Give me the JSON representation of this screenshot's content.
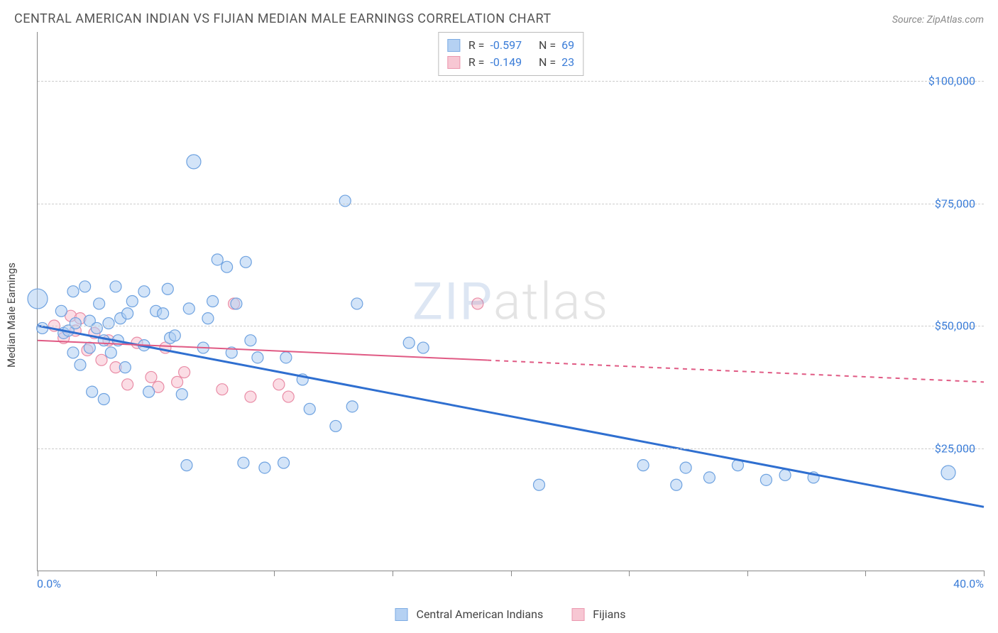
{
  "title": "CENTRAL AMERICAN INDIAN VS FIJIAN MEDIAN MALE EARNINGS CORRELATION CHART",
  "source": "Source: ZipAtlas.com",
  "watermark": {
    "part1": "ZIP",
    "part2": "atlas"
  },
  "chart": {
    "type": "scatter",
    "background_color": "#ffffff",
    "grid_color": "#cccccc",
    "axis_color": "#888888",
    "y_axis_title": "Median Male Earnings",
    "y_axis_title_fontsize": 15,
    "tick_label_color": "#3b7dd8",
    "tick_label_fontsize": 16,
    "xlim": [
      0,
      40
    ],
    "ylim": [
      0,
      110000
    ],
    "x_ticks": [
      0,
      5,
      10,
      15,
      20,
      25,
      30,
      35,
      40
    ],
    "x_tick_labels": {
      "0": "0.0%",
      "40": "40.0%"
    },
    "y_gridlines": [
      25000,
      50000,
      75000,
      100000
    ],
    "y_tick_labels": {
      "25000": "$25,000",
      "50000": "$50,000",
      "75000": "$75,000",
      "100000": "$100,000"
    },
    "series": [
      {
        "name": "Central American Indians",
        "fill": "#aecdf2",
        "stroke": "#6ea2e0",
        "fill_opacity": 0.55,
        "marker_radius": 8,
        "r_value": "-0.597",
        "n_value": "69",
        "trend": {
          "color": "#2f6fd0",
          "width": 3,
          "x1": 0,
          "y1": 50000,
          "x2": 40,
          "y2": 13000,
          "dashed_from_x": null
        },
        "points": [
          [
            0.0,
            55500,
            14
          ],
          [
            0.2,
            49500,
            8
          ],
          [
            1.0,
            53000,
            8
          ],
          [
            1.1,
            48500,
            8
          ],
          [
            1.3,
            49000,
            8
          ],
          [
            1.5,
            57000,
            8
          ],
          [
            1.5,
            44500,
            8
          ],
          [
            1.6,
            50500,
            8
          ],
          [
            1.8,
            42000,
            8
          ],
          [
            2.0,
            58000,
            8
          ],
          [
            2.2,
            51000,
            8
          ],
          [
            2.2,
            45500,
            8
          ],
          [
            2.3,
            36500,
            8
          ],
          [
            2.5,
            49500,
            8
          ],
          [
            2.6,
            54500,
            8
          ],
          [
            2.8,
            47000,
            8
          ],
          [
            2.8,
            35000,
            8
          ],
          [
            3.0,
            50500,
            8
          ],
          [
            3.1,
            44500,
            8
          ],
          [
            3.3,
            58000,
            8
          ],
          [
            3.4,
            47000,
            8
          ],
          [
            3.5,
            51500,
            8
          ],
          [
            3.7,
            41500,
            8
          ],
          [
            3.8,
            52500,
            8
          ],
          [
            4.0,
            55000,
            8
          ],
          [
            4.5,
            57000,
            8
          ],
          [
            4.5,
            46000,
            8
          ],
          [
            4.7,
            36500,
            8
          ],
          [
            5.0,
            53000,
            8
          ],
          [
            5.3,
            52500,
            8
          ],
          [
            5.5,
            57500,
            8
          ],
          [
            5.6,
            47500,
            8
          ],
          [
            5.8,
            48000,
            8
          ],
          [
            6.1,
            36000,
            8
          ],
          [
            6.3,
            21500,
            8
          ],
          [
            6.4,
            53500,
            8
          ],
          [
            6.6,
            83500,
            10
          ],
          [
            7.0,
            45500,
            8
          ],
          [
            7.2,
            51500,
            8
          ],
          [
            7.4,
            55000,
            8
          ],
          [
            7.6,
            63500,
            8
          ],
          [
            8.0,
            62000,
            8
          ],
          [
            8.2,
            44500,
            8
          ],
          [
            8.4,
            54500,
            8
          ],
          [
            8.7,
            22000,
            8
          ],
          [
            8.8,
            63000,
            8
          ],
          [
            9.0,
            47000,
            8
          ],
          [
            9.3,
            43500,
            8
          ],
          [
            9.6,
            21000,
            8
          ],
          [
            10.4,
            22000,
            8
          ],
          [
            10.5,
            43500,
            8
          ],
          [
            11.2,
            39000,
            8
          ],
          [
            11.5,
            33000,
            8
          ],
          [
            12.6,
            29500,
            8
          ],
          [
            13.0,
            75500,
            8
          ],
          [
            13.3,
            33500,
            8
          ],
          [
            13.5,
            54500,
            8
          ],
          [
            15.7,
            46500,
            8
          ],
          [
            16.3,
            45500,
            8
          ],
          [
            21.2,
            17500,
            8
          ],
          [
            25.6,
            21500,
            8
          ],
          [
            27.0,
            17500,
            8
          ],
          [
            27.4,
            21000,
            8
          ],
          [
            28.4,
            19000,
            8
          ],
          [
            29.6,
            21500,
            8
          ],
          [
            30.8,
            18500,
            8
          ],
          [
            31.6,
            19500,
            8
          ],
          [
            32.8,
            19000,
            8
          ],
          [
            38.5,
            20000,
            10
          ]
        ]
      },
      {
        "name": "Fijians",
        "fill": "#f7c1cf",
        "stroke": "#e98ca6",
        "fill_opacity": 0.55,
        "marker_radius": 8,
        "r_value": "-0.149",
        "n_value": "23",
        "trend": {
          "color": "#e05a84",
          "width": 2,
          "x1": 0,
          "y1": 47000,
          "x2": 40,
          "y2": 38500,
          "dashed_from_x": 19
        },
        "points": [
          [
            0.7,
            50000,
            8
          ],
          [
            1.1,
            47500,
            8
          ],
          [
            1.4,
            52000,
            8
          ],
          [
            1.6,
            49000,
            8
          ],
          [
            1.8,
            51500,
            8
          ],
          [
            2.1,
            45000,
            8
          ],
          [
            2.4,
            48500,
            8
          ],
          [
            2.7,
            43000,
            8
          ],
          [
            3.0,
            47000,
            8
          ],
          [
            3.3,
            41500,
            8
          ],
          [
            3.8,
            38000,
            8
          ],
          [
            4.2,
            46500,
            8
          ],
          [
            4.8,
            39500,
            8
          ],
          [
            5.1,
            37500,
            8
          ],
          [
            5.4,
            45500,
            8
          ],
          [
            5.9,
            38500,
            8
          ],
          [
            6.2,
            40500,
            8
          ],
          [
            7.8,
            37000,
            8
          ],
          [
            8.3,
            54500,
            8
          ],
          [
            9.0,
            35500,
            8
          ],
          [
            10.2,
            38000,
            8
          ],
          [
            10.6,
            35500,
            8
          ],
          [
            18.6,
            54500,
            8
          ]
        ]
      }
    ],
    "legend_top": {
      "border_color": "#bbbbbb",
      "r_label": "R =",
      "n_label": "N ="
    },
    "bottom_legend_swatch_size": 18
  }
}
